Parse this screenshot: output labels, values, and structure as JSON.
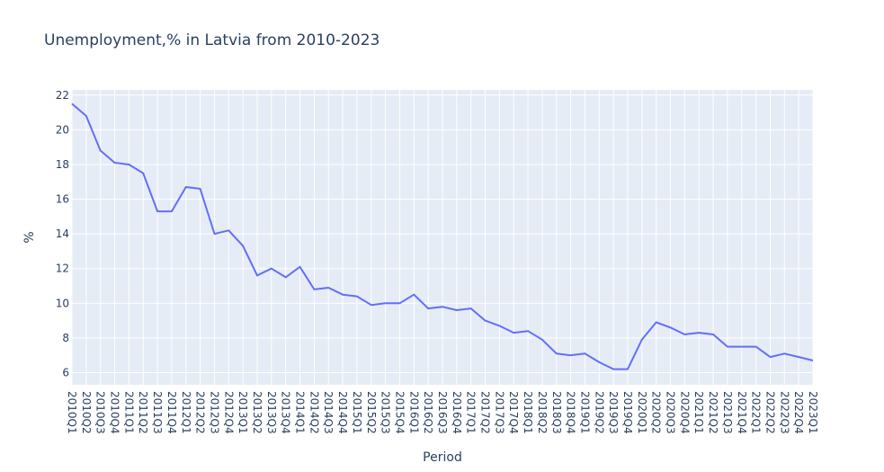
{
  "chart_data": {
    "type": "line",
    "title": "Unemployment,% in Latvia from 2010-2023",
    "xlabel": "Period",
    "ylabel": "%",
    "ylim": [
      5.3,
      22.3
    ],
    "yticks": [
      6,
      8,
      10,
      12,
      14,
      16,
      18,
      20,
      22
    ],
    "grid": true,
    "colors": {
      "line": "#636efa",
      "plot_bg": "#e5ecf6",
      "grid": "#ffffff",
      "text": "#2a3f5f"
    },
    "x": [
      "2010Q1",
      "2010Q2",
      "2010Q3",
      "2010Q4",
      "2011Q1",
      "2011Q2",
      "2011Q3",
      "2011Q4",
      "2012Q1",
      "2012Q2",
      "2012Q3",
      "2012Q4",
      "2013Q1",
      "2013Q2",
      "2013Q3",
      "2013Q4",
      "2014Q1",
      "2014Q2",
      "2014Q3",
      "2014Q4",
      "2015Q1",
      "2015Q2",
      "2015Q3",
      "2015Q4",
      "2016Q1",
      "2016Q2",
      "2016Q3",
      "2016Q4",
      "2017Q1",
      "2017Q2",
      "2017Q3",
      "2017Q4",
      "2018Q1",
      "2018Q2",
      "2018Q3",
      "2018Q4",
      "2019Q1",
      "2019Q2",
      "2019Q3",
      "2019Q4",
      "2020Q1",
      "2020Q2",
      "2020Q3",
      "2020Q4",
      "2021Q1",
      "2021Q2",
      "2021Q3",
      "2021Q4",
      "2022Q1",
      "2022Q2",
      "2022Q3",
      "2022Q4",
      "2023Q1"
    ],
    "series": [
      {
        "values": [
          21.5,
          20.8,
          18.8,
          18.1,
          18.0,
          17.5,
          15.3,
          15.3,
          16.7,
          16.6,
          14.0,
          14.2,
          13.3,
          11.6,
          12.0,
          11.5,
          12.1,
          10.8,
          10.9,
          10.5,
          10.4,
          9.9,
          10.0,
          10.0,
          10.5,
          9.7,
          9.8,
          9.6,
          9.7,
          9.0,
          8.7,
          8.3,
          8.4,
          7.9,
          7.1,
          7.0,
          7.1,
          6.6,
          6.2,
          6.2,
          7.9,
          8.9,
          8.6,
          8.2,
          8.3,
          8.2,
          7.5,
          7.5,
          7.5,
          6.9,
          7.1,
          6.9,
          6.7
        ]
      }
    ]
  }
}
